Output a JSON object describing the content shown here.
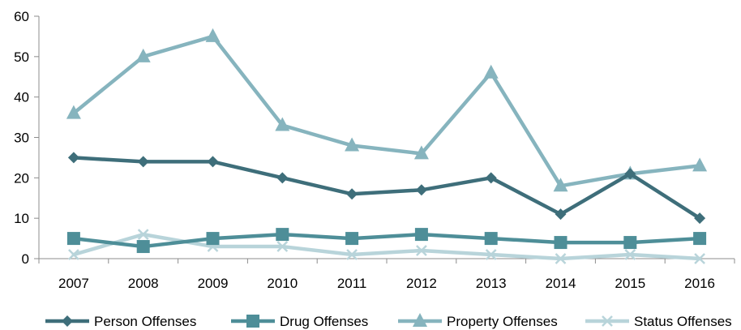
{
  "chart_data": {
    "type": "line",
    "title": "",
    "xlabel": "",
    "ylabel": "",
    "categories": [
      "2007",
      "2008",
      "2009",
      "2010",
      "2011",
      "2012",
      "2013",
      "2014",
      "2015",
      "2016"
    ],
    "ylim": [
      0,
      60
    ],
    "yticks": [
      0,
      10,
      20,
      30,
      40,
      50,
      60
    ],
    "grid": false,
    "legend_position": "bottom",
    "series": [
      {
        "name": "Person Offenses",
        "marker": "diamond",
        "color": "#3E6E7A",
        "values": [
          25,
          24,
          24,
          20,
          16,
          17,
          20,
          11,
          21,
          10
        ]
      },
      {
        "name": "Drug Offenses",
        "marker": "square",
        "color": "#4E8E98",
        "values": [
          5,
          3,
          5,
          6,
          5,
          6,
          5,
          4,
          4,
          5
        ]
      },
      {
        "name": "Property Offenses",
        "marker": "triangle",
        "color": "#86B4BE",
        "values": [
          36,
          50,
          55,
          33,
          28,
          26,
          46,
          18,
          21,
          23
        ]
      },
      {
        "name": "Status Offenses",
        "marker": "x",
        "color": "#B8D4DA",
        "values": [
          1,
          6,
          3,
          3,
          1,
          2,
          1,
          0,
          1,
          0
        ]
      }
    ]
  }
}
